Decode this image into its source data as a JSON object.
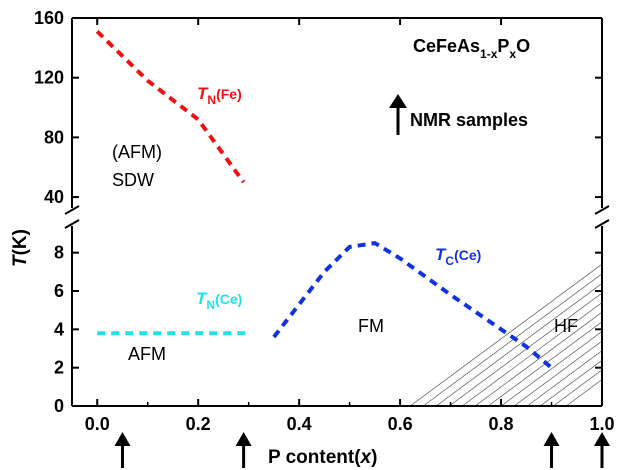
{
  "chart_data": {
    "type": "line",
    "title": "CeFeAs",
    "title_sub1": "1-x",
    "title_mid": "P",
    "title_sub2": "x",
    "title_end": "O",
    "xlabel_main": "P content(",
    "xlabel_var": "x",
    "xlabel_close": ")",
    "ylabel_var": "T",
    "ylabel_unit": "(K)",
    "x_ticks": [
      "0.0",
      "0.2",
      "0.4",
      "0.6",
      "0.8",
      "1.0"
    ],
    "x_tick_values": [
      0.0,
      0.2,
      0.4,
      0.6,
      0.8,
      1.0
    ],
    "xlim": [
      -0.05,
      1.0
    ],
    "y_ticks_upper": [
      "40",
      "80",
      "120",
      "160"
    ],
    "y_tick_values_upper": [
      40,
      80,
      120,
      160
    ],
    "ylim_upper": [
      30,
      160
    ],
    "y_ticks_lower": [
      "0",
      "2",
      "4",
      "6",
      "8"
    ],
    "y_tick_values_lower": [
      0,
      2,
      4,
      6,
      8
    ],
    "ylim_lower": [
      0,
      9.6
    ],
    "axis_break": true,
    "series": [
      {
        "name": "TN(Fe)",
        "label_main": "T",
        "label_sub": "N",
        "label_rest": "(Fe)",
        "color": "#ee1111",
        "panel": "upper",
        "x": [
          0.0,
          0.1,
          0.2,
          0.29
        ],
        "y": [
          151,
          118,
          92,
          50
        ]
      },
      {
        "name": "TN(Ce)",
        "label_main": "T",
        "label_sub": "N",
        "label_rest": "(Ce)",
        "color": "#22e0e8",
        "panel": "lower",
        "x": [
          0.0,
          0.3
        ],
        "y": [
          3.8,
          3.8
        ]
      },
      {
        "name": "TC(Ce)",
        "label_main": "T",
        "label_sub": "C",
        "label_rest": "(Ce)",
        "color": "#1133dd",
        "panel": "lower",
        "x": [
          0.35,
          0.4,
          0.45,
          0.5,
          0.55,
          0.6,
          0.7,
          0.8,
          0.85,
          0.9
        ],
        "y": [
          3.6,
          5.3,
          7.0,
          8.3,
          8.5,
          7.7,
          5.8,
          4.0,
          3.1,
          2.0
        ]
      }
    ],
    "annotations": {
      "afm_sdw_line1": "(AFM)",
      "afm_sdw_line2": "SDW",
      "afm": "AFM",
      "fm": "FM",
      "hf": "HF",
      "nmr_samples": "NMR samples"
    },
    "nmr_sample_x": [
      0.05,
      0.29,
      0.9,
      1.0
    ],
    "hatched_region": "HF",
    "grid": false,
    "legend": "none"
  }
}
